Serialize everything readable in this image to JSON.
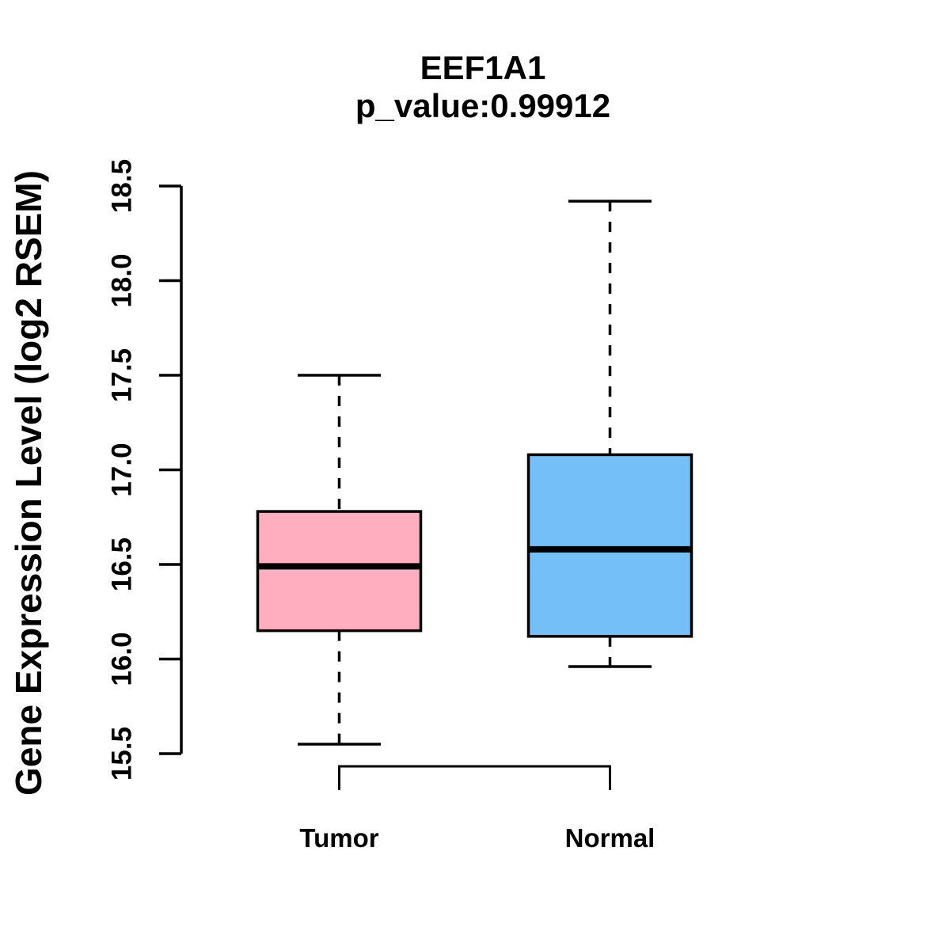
{
  "chart_data": {
    "type": "boxplot",
    "title": "EEF1A1",
    "subtitle": "p_value:0.99912",
    "ylabel": "Gene Expression Level (log2 RSEM)",
    "xlabel": "",
    "categories": [
      "Tumor",
      "Normal"
    ],
    "ylim": [
      15.5,
      18.5
    ],
    "yticks": [
      18.5,
      18.0,
      17.5,
      17.0,
      16.5,
      16.0,
      15.5
    ],
    "grid": false,
    "legend": "none",
    "series": [
      {
        "name": "Tumor",
        "color": "#FFAEC0",
        "whisker_low": 15.55,
        "q1": 16.15,
        "median": 16.49,
        "q3": 16.78,
        "whisker_high": 17.5
      },
      {
        "name": "Normal",
        "color": "#74BFF7",
        "whisker_low": 15.96,
        "q1": 16.12,
        "median": 16.58,
        "q3": 17.08,
        "whisker_high": 18.42
      }
    ],
    "comparison_bracket": {
      "from": "Tumor",
      "to": "Normal"
    },
    "colors": {
      "stroke": "#000000",
      "background": "#FFFFFF"
    }
  }
}
